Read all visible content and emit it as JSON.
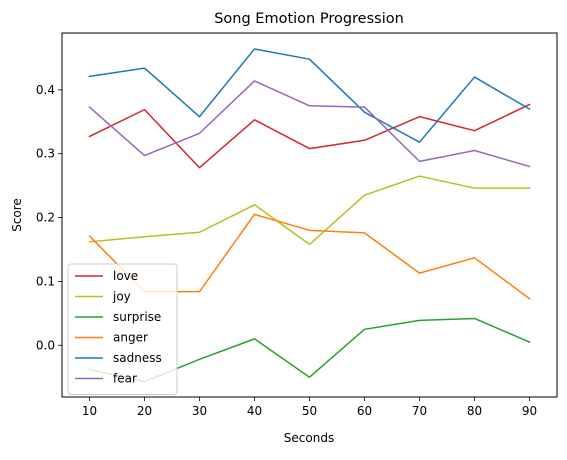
{
  "chart_data": {
    "type": "line",
    "title": "Song Emotion Progression",
    "xlabel": "Seconds",
    "ylabel": "Score",
    "x": [
      10,
      20,
      30,
      40,
      50,
      60,
      70,
      80,
      90
    ],
    "xlim": [
      5,
      95
    ],
    "ylim": [
      -0.081,
      0.489
    ],
    "x_ticks": [
      10,
      20,
      30,
      40,
      50,
      60,
      70,
      80,
      90
    ],
    "y_ticks": [
      0.0,
      0.1,
      0.2,
      0.3,
      0.4
    ],
    "y_tick_labels": [
      "0.0",
      "0.1",
      "0.2",
      "0.3",
      "0.4"
    ],
    "grid": false,
    "legend_position": "lower-left",
    "series": [
      {
        "name": "love",
        "color": "#d62728",
        "values": [
          0.327,
          0.369,
          0.278,
          0.353,
          0.308,
          0.321,
          0.358,
          0.336,
          0.377
        ]
      },
      {
        "name": "joy",
        "color": "#bcbd22",
        "values": [
          0.162,
          0.17,
          0.177,
          0.22,
          0.158,
          0.235,
          0.265,
          0.246,
          0.246
        ]
      },
      {
        "name": "surprise",
        "color": "#2ca02c",
        "values": [
          -0.038,
          -0.057,
          -0.022,
          0.01,
          -0.05,
          0.025,
          0.039,
          0.042,
          0.005
        ]
      },
      {
        "name": "anger",
        "color": "#ff7f0e",
        "values": [
          0.171,
          0.084,
          0.084,
          0.205,
          0.18,
          0.176,
          0.113,
          0.137,
          0.073
        ]
      },
      {
        "name": "sadness",
        "color": "#1f77b4",
        "values": [
          0.421,
          0.434,
          0.358,
          0.464,
          0.448,
          0.365,
          0.318,
          0.42,
          0.37
        ]
      },
      {
        "name": "fear",
        "color": "#9467bd",
        "values": [
          0.373,
          0.297,
          0.332,
          0.414,
          0.375,
          0.373,
          0.288,
          0.305,
          0.28
        ]
      }
    ]
  }
}
